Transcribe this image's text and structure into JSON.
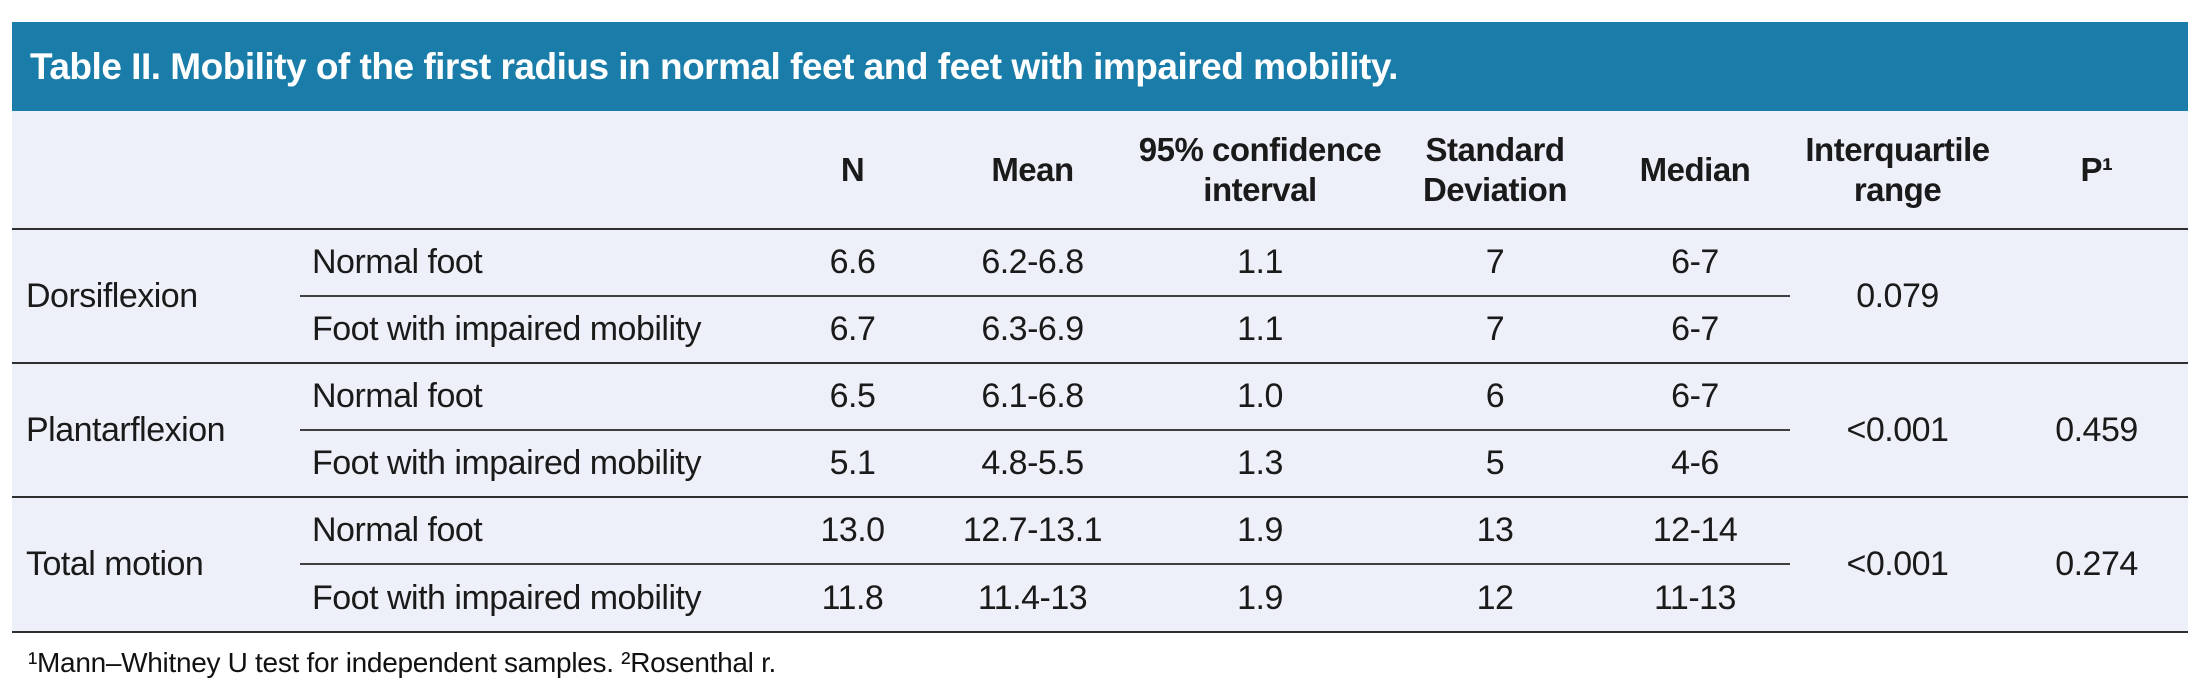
{
  "title": "Table II. Mobility of the first radius in normal feet and feet with impaired mobility.",
  "colors": {
    "title_bar_bg": "#1a7da9",
    "title_text": "#ffffff",
    "table_body_bg": "#edf0f8",
    "rule": "#2f2f2f"
  },
  "columns": {
    "motion": "",
    "foot": "",
    "n": "N",
    "mean": "Mean",
    "ci": "95% confidence interval",
    "sd": "Standard Deviation",
    "median": "Median",
    "iqr": "Interquartile range",
    "p": "P¹"
  },
  "rows": [
    {
      "motion": "Dorsiflexion",
      "iqr": "0.079",
      "p": "",
      "sub": [
        {
          "label": "Normal foot",
          "n": "6.6",
          "mean": "6.2-6.8",
          "ci": "1.1",
          "sd": "7",
          "median": "6-7"
        },
        {
          "label": "Foot with impaired mobility",
          "n": "6.7",
          "mean": "6.3-6.9",
          "ci": "1.1",
          "sd": "7",
          "median": "6-7"
        }
      ]
    },
    {
      "motion": "Plantarflexion",
      "iqr": "<0.001",
      "p": "0.459",
      "sub": [
        {
          "label": "Normal foot",
          "n": "6.5",
          "mean": "6.1-6.8",
          "ci": "1.0",
          "sd": "6",
          "median": "6-7"
        },
        {
          "label": "Foot with impaired mobility",
          "n": "5.1",
          "mean": "4.8-5.5",
          "ci": "1.3",
          "sd": "5",
          "median": "4-6"
        }
      ]
    },
    {
      "motion": "Total motion",
      "iqr": "<0.001",
      "p": "0.274",
      "sub": [
        {
          "label": "Normal foot",
          "n": "13.0",
          "mean": "12.7-13.1",
          "ci": "1.9",
          "sd": "13",
          "median": "12-14"
        },
        {
          "label": "Foot with impaired mobility",
          "n": "11.8",
          "mean": "11.4-13",
          "ci": "1.9",
          "sd": "12",
          "median": "11-13"
        }
      ]
    }
  ],
  "footnote": "¹Mann–Whitney U test for independent samples. ²Rosenthal r."
}
